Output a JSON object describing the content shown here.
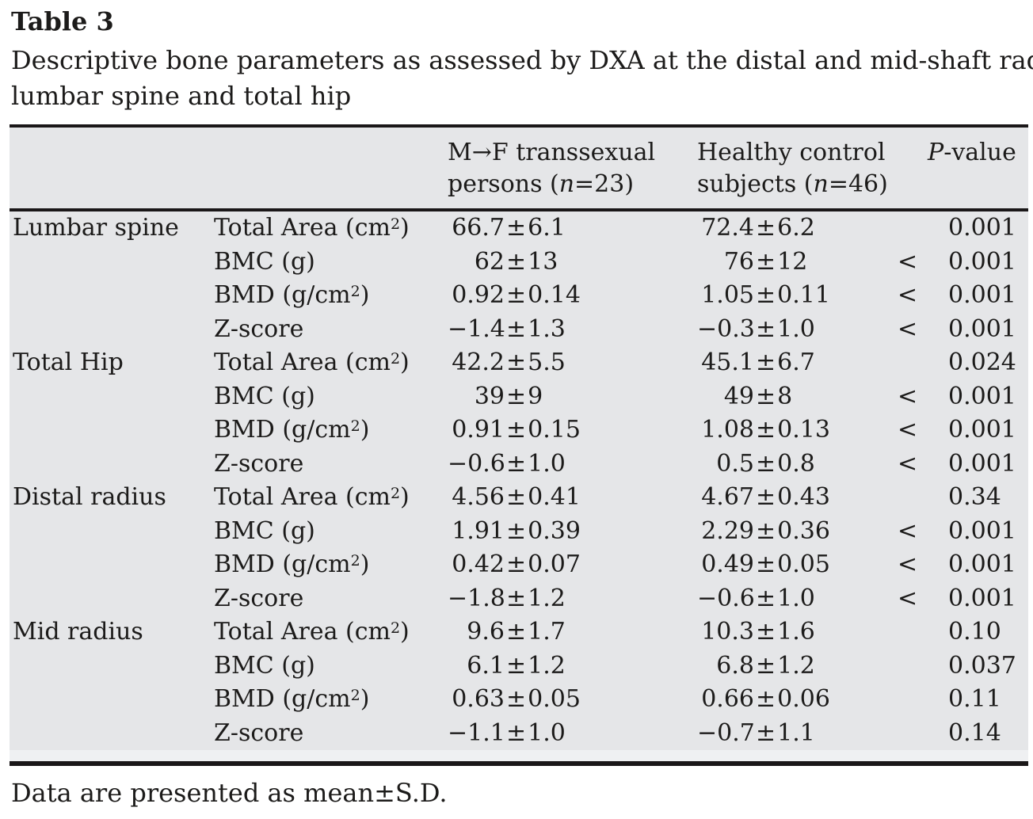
{
  "title": "Table 3",
  "caption": {
    "line1": "Descriptive bone parameters as assessed by DXA at the distal and mid-shaft radius,",
    "line2": "lumbar spine and total hip"
  },
  "symbols": {
    "pm": "±"
  },
  "columns": {
    "mf": {
      "line1": "M→F transsexual",
      "line2_pre": "persons (",
      "n": "n",
      "line2_post": "=23)"
    },
    "hc": {
      "line1": "Healthy control",
      "line2_pre": "subjects (",
      "n": "n",
      "line2_post": "=46)"
    },
    "p": {
      "italic": "P",
      "rest": "-value"
    }
  },
  "rows": [
    {
      "group": "Lumbar spine",
      "param": {
        "pre": "Total Area (cm",
        "sup": "2",
        "post": ")"
      },
      "mf": {
        "mean": "66.7",
        "sd": "6.1"
      },
      "hc": {
        "mean": "72.4",
        "sd": "6.2"
      },
      "p": {
        "prefix": "",
        "value": "0.001"
      }
    },
    {
      "group": "",
      "param": {
        "pre": "BMC (g)",
        "sup": "",
        "post": ""
      },
      "mf": {
        "mean": "62",
        "sd": "13"
      },
      "hc": {
        "mean": "76",
        "sd": "12"
      },
      "p": {
        "prefix": "<",
        "value": "0.001"
      }
    },
    {
      "group": "",
      "param": {
        "pre": "BMD (g/cm",
        "sup": "2",
        "post": ")"
      },
      "mf": {
        "mean": "0.92",
        "sd": "0.14"
      },
      "hc": {
        "mean": "1.05",
        "sd": "0.11"
      },
      "p": {
        "prefix": "<",
        "value": "0.001"
      }
    },
    {
      "group": "",
      "param": {
        "pre": "Z-score",
        "sup": "",
        "post": ""
      },
      "mf": {
        "mean": "−1.4",
        "sd": "1.3"
      },
      "hc": {
        "mean": "−0.3",
        "sd": "1.0"
      },
      "p": {
        "prefix": "<",
        "value": "0.001"
      }
    },
    {
      "group": "Total Hip",
      "param": {
        "pre": "Total Area (cm",
        "sup": "2",
        "post": ")"
      },
      "mf": {
        "mean": "42.2",
        "sd": "5.5"
      },
      "hc": {
        "mean": "45.1",
        "sd": "6.7"
      },
      "p": {
        "prefix": "",
        "value": "0.024"
      }
    },
    {
      "group": "",
      "param": {
        "pre": "BMC (g)",
        "sup": "",
        "post": ""
      },
      "mf": {
        "mean": "39",
        "sd": "9"
      },
      "hc": {
        "mean": "49",
        "sd": "8"
      },
      "p": {
        "prefix": "<",
        "value": "0.001"
      }
    },
    {
      "group": "",
      "param": {
        "pre": "BMD (g/cm",
        "sup": "2",
        "post": ")"
      },
      "mf": {
        "mean": "0.91",
        "sd": "0.15"
      },
      "hc": {
        "mean": "1.08",
        "sd": "0.13"
      },
      "p": {
        "prefix": "<",
        "value": "0.001"
      }
    },
    {
      "group": "",
      "param": {
        "pre": "Z-score",
        "sup": "",
        "post": ""
      },
      "mf": {
        "mean": "−0.6",
        "sd": "1.0"
      },
      "hc": {
        "mean": "0.5",
        "sd": "0.8"
      },
      "p": {
        "prefix": "<",
        "value": "0.001"
      }
    },
    {
      "group": "Distal radius",
      "param": {
        "pre": "Total Area (cm",
        "sup": "2",
        "post": ")"
      },
      "mf": {
        "mean": "4.56",
        "sd": "0.41"
      },
      "hc": {
        "mean": "4.67",
        "sd": "0.43"
      },
      "p": {
        "prefix": "",
        "value": "0.34"
      }
    },
    {
      "group": "",
      "param": {
        "pre": "BMC (g)",
        "sup": "",
        "post": ""
      },
      "mf": {
        "mean": "1.91",
        "sd": "0.39"
      },
      "hc": {
        "mean": "2.29",
        "sd": "0.36"
      },
      "p": {
        "prefix": "<",
        "value": "0.001"
      }
    },
    {
      "group": "",
      "param": {
        "pre": "BMD (g/cm",
        "sup": "2",
        "post": ")"
      },
      "mf": {
        "mean": "0.42",
        "sd": "0.07"
      },
      "hc": {
        "mean": "0.49",
        "sd": "0.05"
      },
      "p": {
        "prefix": "<",
        "value": "0.001"
      }
    },
    {
      "group": "",
      "param": {
        "pre": "Z-score",
        "sup": "",
        "post": ""
      },
      "mf": {
        "mean": "−1.8",
        "sd": "1.2"
      },
      "hc": {
        "mean": "−0.6",
        "sd": "1.0"
      },
      "p": {
        "prefix": "<",
        "value": "0.001"
      }
    },
    {
      "group": "Mid radius",
      "param": {
        "pre": "Total Area (cm",
        "sup": "2",
        "post": ")"
      },
      "mf": {
        "mean": "9.6",
        "sd": "1.7"
      },
      "hc": {
        "mean": "10.3",
        "sd": "1.6"
      },
      "p": {
        "prefix": "",
        "value": "0.10"
      }
    },
    {
      "group": "",
      "param": {
        "pre": "BMC (g)",
        "sup": "",
        "post": ""
      },
      "mf": {
        "mean": "6.1",
        "sd": "1.2"
      },
      "hc": {
        "mean": "6.8",
        "sd": "1.2"
      },
      "p": {
        "prefix": "",
        "value": "0.037"
      }
    },
    {
      "group": "",
      "param": {
        "pre": "BMD (g/cm",
        "sup": "2",
        "post": ")"
      },
      "mf": {
        "mean": "0.63",
        "sd": "0.05"
      },
      "hc": {
        "mean": "0.66",
        "sd": "0.06"
      },
      "p": {
        "prefix": "",
        "value": "0.11"
      }
    },
    {
      "group": "",
      "param": {
        "pre": "Z-score",
        "sup": "",
        "post": ""
      },
      "mf": {
        "mean": "−1.1",
        "sd": "1.0"
      },
      "hc": {
        "mean": "−0.7",
        "sd": "1.1"
      },
      "p": {
        "prefix": "",
        "value": "0.14"
      }
    }
  ],
  "footnote": {
    "pre": "Data are presented as mean",
    "pm": "±",
    "post": "S.D."
  },
  "colors": {
    "table_bg": "#e5e6e8",
    "rule": "#1a1718",
    "text": "#1c1b1a"
  }
}
